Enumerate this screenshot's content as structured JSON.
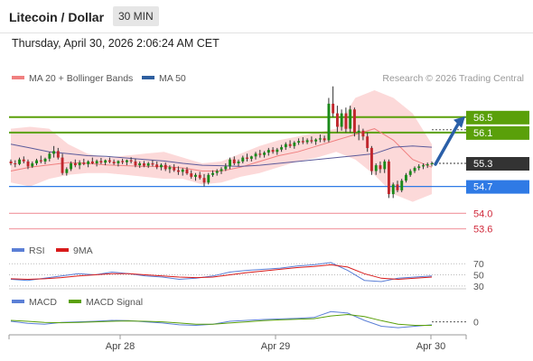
{
  "header": {
    "title": "Litecoin / Dollar",
    "timeframe": "30 MIN",
    "datetime": "Thursday, April 30, 2026 2:06:24 AM CET",
    "copyright": "Research © 2026 Trading Central"
  },
  "colors": {
    "bullish": "#1a8a1a",
    "bearish": "#c0272d",
    "bollinger_fill": "#fcd9d9",
    "ma20": "#f08080",
    "ma50": "#5b5b9b",
    "resistance": "#5aa00a",
    "support": "#2f7ae5",
    "support_light": "#f2a0a8",
    "price_badge": "#333333",
    "arrow": "#2a5fa8",
    "rsi": "#5b7fd6",
    "rsi_ma": "#d81b1b",
    "macd": "#5b7fd6",
    "macd_signal": "#5aa00a"
  },
  "chart_data": [
    {
      "type": "candlestick",
      "legend": [
        {
          "label": "MA 20 + Bollinger Bands",
          "color": "#f08080"
        },
        {
          "label": "MA 50",
          "color": "#2f5f9f"
        }
      ],
      "x_ticks": [
        "Apr 28",
        "Apr 29",
        "Apr 30"
      ],
      "ylim": [
        53.4,
        57.2
      ],
      "levels": [
        {
          "value": 56.5,
          "label": "56.5",
          "kind": "resistance"
        },
        {
          "value": 56.1,
          "label": "56.1",
          "kind": "resistance"
        },
        {
          "value": 54.7,
          "label": "54.7",
          "kind": "support"
        },
        {
          "value": 54.0,
          "label": "54.0",
          "kind": "support-light"
        },
        {
          "value": 53.6,
          "label": "53.6",
          "kind": "support-light"
        }
      ],
      "current_price": {
        "value": 55.3,
        "label": "55.3"
      },
      "candles": [
        [
          55.35,
          55.4,
          55.25,
          55.3
        ],
        [
          55.3,
          55.38,
          55.2,
          55.28
        ],
        [
          55.28,
          55.45,
          55.25,
          55.4
        ],
        [
          55.4,
          55.48,
          55.3,
          55.35
        ],
        [
          55.35,
          55.4,
          55.15,
          55.22
        ],
        [
          55.22,
          55.35,
          55.18,
          55.3
        ],
        [
          55.3,
          55.42,
          55.25,
          55.38
        ],
        [
          55.38,
          55.5,
          55.3,
          55.35
        ],
        [
          55.35,
          55.45,
          55.28,
          55.42
        ],
        [
          55.42,
          55.6,
          55.35,
          55.55
        ],
        [
          55.55,
          55.75,
          55.45,
          55.62
        ],
        [
          55.62,
          55.7,
          55.4,
          55.45
        ],
        [
          55.45,
          55.55,
          55.0,
          55.05
        ],
        [
          55.05,
          55.2,
          54.98,
          55.15
        ],
        [
          55.15,
          55.35,
          55.1,
          55.3
        ],
        [
          55.3,
          55.4,
          55.2,
          55.25
        ],
        [
          55.25,
          55.38,
          55.15,
          55.32
        ],
        [
          55.32,
          55.42,
          55.25,
          55.28
        ],
        [
          55.28,
          55.38,
          55.2,
          55.35
        ],
        [
          55.35,
          55.45,
          55.28,
          55.3
        ],
        [
          55.3,
          55.4,
          55.22,
          55.36
        ],
        [
          55.36,
          55.44,
          55.28,
          55.32
        ],
        [
          55.32,
          55.4,
          55.25,
          55.38
        ],
        [
          55.38,
          55.45,
          55.3,
          55.34
        ],
        [
          55.34,
          55.4,
          55.26,
          55.3
        ],
        [
          55.3,
          55.38,
          55.22,
          55.36
        ],
        [
          55.36,
          55.42,
          55.28,
          55.33
        ],
        [
          55.33,
          55.4,
          55.25,
          55.38
        ],
        [
          55.38,
          55.46,
          55.3,
          55.35
        ],
        [
          55.35,
          55.42,
          55.2,
          55.25
        ],
        [
          55.25,
          55.35,
          55.18,
          55.3
        ],
        [
          55.3,
          55.36,
          55.2,
          55.24
        ],
        [
          55.24,
          55.34,
          55.18,
          55.3
        ],
        [
          55.3,
          55.38,
          55.22,
          55.27
        ],
        [
          55.27,
          55.35,
          55.15,
          55.2
        ],
        [
          55.2,
          55.3,
          55.12,
          55.26
        ],
        [
          55.26,
          55.32,
          55.1,
          55.15
        ],
        [
          55.15,
          55.25,
          55.05,
          55.2
        ],
        [
          55.2,
          55.28,
          55.08,
          55.12
        ],
        [
          55.12,
          55.22,
          55.0,
          55.08
        ],
        [
          55.08,
          55.18,
          54.98,
          55.14
        ],
        [
          55.14,
          55.2,
          55.0,
          55.04
        ],
        [
          55.04,
          55.12,
          54.9,
          54.95
        ],
        [
          54.95,
          55.05,
          54.85,
          55.0
        ],
        [
          55.0,
          55.08,
          54.88,
          54.92
        ],
        [
          54.92,
          55.02,
          54.7,
          54.8
        ],
        [
          54.8,
          55.05,
          54.75,
          55.0
        ],
        [
          55.0,
          55.12,
          54.95,
          55.05
        ],
        [
          55.05,
          55.15,
          54.98,
          55.1
        ],
        [
          55.1,
          55.2,
          55.02,
          55.15
        ],
        [
          55.15,
          55.3,
          55.1,
          55.22
        ],
        [
          55.22,
          55.45,
          55.15,
          55.4
        ],
        [
          55.4,
          55.48,
          55.25,
          55.3
        ],
        [
          55.3,
          55.4,
          55.22,
          55.35
        ],
        [
          55.35,
          55.5,
          55.3,
          55.45
        ],
        [
          55.45,
          55.55,
          55.35,
          55.42
        ],
        [
          55.42,
          55.5,
          55.35,
          55.48
        ],
        [
          55.48,
          55.6,
          55.4,
          55.55
        ],
        [
          55.55,
          55.65,
          55.45,
          55.52
        ],
        [
          55.52,
          55.62,
          55.45,
          55.58
        ],
        [
          55.58,
          55.7,
          55.5,
          55.65
        ],
        [
          55.65,
          55.72,
          55.55,
          55.6
        ],
        [
          55.6,
          55.7,
          55.52,
          55.66
        ],
        [
          55.66,
          55.78,
          55.6,
          55.72
        ],
        [
          55.72,
          55.85,
          55.65,
          55.8
        ],
        [
          55.8,
          55.9,
          55.7,
          55.75
        ],
        [
          55.75,
          55.88,
          55.68,
          55.84
        ],
        [
          55.84,
          55.95,
          55.78,
          55.88
        ],
        [
          55.88,
          55.98,
          55.8,
          55.85
        ],
        [
          55.85,
          55.95,
          55.8,
          55.9
        ],
        [
          55.9,
          56.0,
          55.82,
          55.87
        ],
        [
          55.87,
          55.95,
          55.78,
          55.92
        ],
        [
          55.92,
          56.05,
          55.85,
          55.95
        ],
        [
          55.95,
          56.02,
          55.85,
          55.9
        ],
        [
          55.9,
          57.0,
          55.85,
          56.85
        ],
        [
          56.85,
          57.3,
          56.5,
          56.6
        ],
        [
          56.6,
          56.8,
          56.1,
          56.25
        ],
        [
          56.25,
          56.7,
          56.15,
          56.6
        ],
        [
          56.6,
          56.75,
          56.1,
          56.2
        ],
        [
          56.2,
          56.8,
          56.1,
          56.7
        ],
        [
          56.7,
          56.75,
          56.0,
          56.1
        ],
        [
          56.1,
          56.3,
          55.9,
          56.15
        ],
        [
          56.15,
          56.2,
          55.9,
          56.0
        ],
        [
          56.0,
          56.1,
          55.6,
          55.7
        ],
        [
          55.7,
          55.75,
          55.0,
          55.1
        ],
        [
          55.1,
          55.3,
          55.0,
          55.25
        ],
        [
          55.25,
          55.35,
          55.05,
          55.15
        ],
        [
          55.15,
          55.4,
          55.05,
          55.35
        ],
        [
          55.35,
          55.4,
          54.4,
          54.5
        ],
        [
          54.5,
          54.8,
          54.4,
          54.75
        ],
        [
          54.75,
          54.85,
          54.55,
          54.6
        ],
        [
          54.6,
          54.9,
          54.55,
          54.85
        ],
        [
          54.85,
          55.05,
          54.8,
          55.0
        ],
        [
          55.0,
          55.15,
          54.95,
          55.1
        ],
        [
          55.1,
          55.22,
          55.05,
          55.18
        ],
        [
          55.18,
          55.28,
          55.12,
          55.22
        ],
        [
          55.22,
          55.3,
          55.15,
          55.25
        ],
        [
          55.25,
          55.32,
          55.18,
          55.28
        ],
        [
          55.28,
          55.35,
          55.22,
          55.3
        ]
      ],
      "ma20": [
        55.1,
        55.2,
        55.26,
        55.32,
        55.3,
        55.26,
        55.24,
        55.22,
        55.22,
        55.18,
        55.1,
        55.1,
        55.2,
        55.35,
        55.5,
        55.6,
        55.75,
        55.9,
        56.05,
        56.2,
        55.9,
        55.4,
        55.2
      ],
      "ma50": [
        55.8,
        55.7,
        55.6,
        55.55,
        55.5,
        55.48,
        55.44,
        55.4,
        55.36,
        55.3,
        55.25,
        55.24,
        55.22,
        55.25,
        55.3,
        55.35,
        55.4,
        55.45,
        55.5,
        55.55,
        55.72,
        55.75,
        55.72
      ],
      "bb_upper": [
        56.2,
        56.25,
        56.2,
        55.8,
        55.55,
        55.45,
        55.5,
        55.55,
        55.6,
        55.45,
        55.3,
        55.35,
        55.55,
        55.75,
        55.9,
        56.0,
        56.1,
        56.2,
        57.0,
        57.2,
        57.0,
        56.6,
        55.8
      ],
      "bb_lower": [
        54.8,
        54.7,
        54.9,
        55.0,
        55.05,
        55.05,
        55.0,
        54.95,
        54.9,
        54.9,
        54.75,
        54.8,
        54.95,
        55.05,
        55.2,
        55.35,
        55.45,
        55.6,
        55.4,
        55.0,
        54.5,
        54.3,
        54.5
      ],
      "projection": {
        "from": 55.3,
        "to": 56.5
      }
    },
    {
      "type": "line",
      "legend": [
        {
          "label": "RSI",
          "color": "#5b7fd6"
        },
        {
          "label": "9MA",
          "color": "#d81b1b"
        }
      ],
      "ylim": [
        25,
        80
      ],
      "y_ticks": [
        30,
        50,
        70
      ],
      "series": [
        {
          "values": [
            42,
            40,
            44,
            48,
            52,
            50,
            55,
            52,
            48,
            46,
            42,
            44,
            48,
            55,
            58,
            60,
            62,
            66,
            68,
            72,
            58,
            40,
            38,
            44,
            46,
            48
          ]
        },
        {
          "values": [
            43,
            42,
            43,
            45,
            48,
            50,
            52,
            52,
            50,
            48,
            46,
            45,
            46,
            50,
            54,
            57,
            60,
            63,
            65,
            68,
            64,
            52,
            44,
            42,
            44,
            46
          ]
        }
      ]
    },
    {
      "type": "line",
      "legend": [
        {
          "label": "MACD",
          "color": "#5b7fd6"
        },
        {
          "label": "MACD Signal",
          "color": "#5aa00a"
        }
      ],
      "ylim": [
        -0.35,
        0.45
      ],
      "y_ticks": [
        0
      ],
      "series": [
        {
          "values": [
            0.02,
            -0.05,
            -0.08,
            -0.02,
            0.0,
            0.02,
            0.05,
            0.04,
            0.0,
            -0.04,
            -0.1,
            -0.12,
            -0.08,
            0.02,
            0.05,
            0.08,
            0.1,
            0.12,
            0.15,
            0.35,
            0.3,
            0.05,
            -0.15,
            -0.2,
            -0.15,
            -0.1
          ]
        },
        {
          "values": [
            0.05,
            0.02,
            -0.02,
            -0.03,
            -0.02,
            0.0,
            0.02,
            0.03,
            0.02,
            0.0,
            -0.04,
            -0.08,
            -0.08,
            -0.04,
            0.0,
            0.04,
            0.07,
            0.09,
            0.11,
            0.2,
            0.25,
            0.18,
            0.04,
            -0.08,
            -0.12,
            -0.12
          ]
        }
      ]
    }
  ]
}
